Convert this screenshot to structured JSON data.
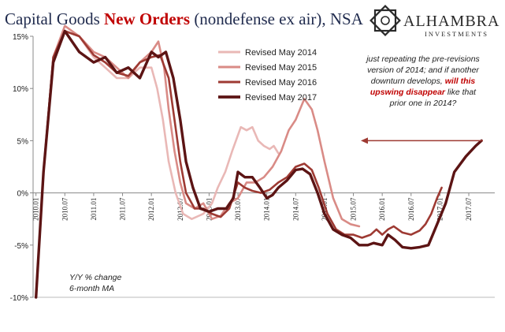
{
  "header": {
    "title_part1": "Capital Goods ",
    "title_accent": "New Orders",
    "title_part2": " (nondefense ex air), NSA"
  },
  "brand": {
    "name": "ALHAMBRA",
    "subtitle": "INVESTMENTS",
    "logo_icon": "geometric-star-icon"
  },
  "annotation": {
    "line1": "just repeating the pre-revisions",
    "line2": "version of 2014; and if another",
    "line3_pre": "downturn develops, ",
    "line3_red": "will this",
    "line4_red": "upswing disappear",
    "line4_post": " like that",
    "line5": "prior one in 2014?"
  },
  "note": {
    "line1": "Y/Y % change",
    "line2": "6-month MA"
  },
  "colors": {
    "s2014": "#e9b8b6",
    "s2015": "#d98b86",
    "s2016": "#9e3a33",
    "s2017": "#5c1414",
    "arrow": "#9e3a33",
    "accent": "#c00000"
  },
  "chart_data": {
    "type": "line",
    "ylim": [
      -10,
      15
    ],
    "yticks": [
      15,
      10,
      5,
      0,
      -5,
      -10
    ],
    "ytick_labels": [
      "15%",
      "10%",
      "5%",
      "0%",
      "-5%",
      "-10%"
    ],
    "x_range": [
      2009.95,
      2017.95
    ],
    "xticks": [
      2010.0,
      2010.5,
      2011.0,
      2011.5,
      2012.0,
      2012.5,
      2013.0,
      2013.5,
      2014.0,
      2014.5,
      2015.0,
      2015.5,
      2016.0,
      2016.5,
      2017.0,
      2017.5
    ],
    "xtick_labels": [
      "2010.01",
      "2010.07",
      "2011.01",
      "2011.07",
      "2012.01",
      "2012.07",
      "2013.01",
      "2013.07",
      "2014.01",
      "2014.07",
      "2015.01",
      "2015.07",
      "2016.01",
      "2016.07",
      "2017.01",
      "2017.07"
    ],
    "grid": false,
    "legend_position": "top-center",
    "series": [
      {
        "name": "Revised May 2014",
        "color": "#e9b8b6",
        "width": 2.6,
        "points": [
          [
            2010.0,
            -10
          ],
          [
            2010.13,
            2
          ],
          [
            2010.3,
            13
          ],
          [
            2010.5,
            15.5
          ],
          [
            2010.75,
            15
          ],
          [
            2011.0,
            13
          ],
          [
            2011.2,
            12
          ],
          [
            2011.4,
            11
          ],
          [
            2011.6,
            11
          ],
          [
            2011.8,
            12
          ],
          [
            2012.0,
            12
          ],
          [
            2012.1,
            10
          ],
          [
            2012.2,
            7
          ],
          [
            2012.3,
            3
          ],
          [
            2012.42,
            0
          ],
          [
            2012.55,
            -2
          ],
          [
            2012.7,
            -2.5
          ],
          [
            2012.9,
            -2
          ],
          [
            2013.05,
            -1
          ],
          [
            2013.15,
            0.5
          ],
          [
            2013.28,
            2
          ],
          [
            2013.4,
            4
          ],
          [
            2013.55,
            6.3
          ],
          [
            2013.65,
            6
          ],
          [
            2013.75,
            6.3
          ],
          [
            2013.85,
            5
          ],
          [
            2013.95,
            4.5
          ],
          [
            2014.05,
            4.2
          ],
          [
            2014.12,
            4.5
          ],
          [
            2014.2,
            3.8
          ]
        ]
      },
      {
        "name": "Revised May 2015",
        "color": "#d98b86",
        "width": 2.6,
        "points": [
          [
            2010.0,
            -10
          ],
          [
            2010.13,
            2
          ],
          [
            2010.3,
            13
          ],
          [
            2010.5,
            16
          ],
          [
            2010.75,
            15
          ],
          [
            2011.0,
            13.5
          ],
          [
            2011.2,
            13
          ],
          [
            2011.4,
            12
          ],
          [
            2011.6,
            11
          ],
          [
            2011.8,
            12.5
          ],
          [
            2012.0,
            13.5
          ],
          [
            2012.12,
            14.5
          ],
          [
            2012.22,
            12
          ],
          [
            2012.3,
            8
          ],
          [
            2012.4,
            4
          ],
          [
            2012.5,
            1
          ],
          [
            2012.6,
            -1
          ],
          [
            2012.75,
            -1.5
          ],
          [
            2012.9,
            -1
          ],
          [
            2013.05,
            -2.5
          ],
          [
            2013.2,
            -2.2
          ],
          [
            2013.35,
            -1
          ],
          [
            2013.5,
            -0.5
          ],
          [
            2013.65,
            1
          ],
          [
            2013.8,
            1
          ],
          [
            2013.95,
            1.5
          ],
          [
            2014.1,
            2.5
          ],
          [
            2014.25,
            4
          ],
          [
            2014.38,
            6
          ],
          [
            2014.5,
            7
          ],
          [
            2014.65,
            9
          ],
          [
            2014.78,
            8
          ],
          [
            2014.88,
            6
          ],
          [
            2015.0,
            3
          ],
          [
            2015.15,
            -0.5
          ],
          [
            2015.3,
            -2.5
          ],
          [
            2015.45,
            -3
          ],
          [
            2015.6,
            -3.2
          ]
        ]
      },
      {
        "name": "Revised May 2016",
        "color": "#9e3a33",
        "width": 2.6,
        "points": [
          [
            2010.0,
            -10
          ],
          [
            2010.13,
            2
          ],
          [
            2010.3,
            13
          ],
          [
            2010.5,
            15.5
          ],
          [
            2010.75,
            15
          ],
          [
            2011.0,
            13.2
          ],
          [
            2011.2,
            12.5
          ],
          [
            2011.4,
            11.5
          ],
          [
            2011.6,
            11.2
          ],
          [
            2011.8,
            12.5
          ],
          [
            2012.0,
            13
          ],
          [
            2012.15,
            13.2
          ],
          [
            2012.3,
            11
          ],
          [
            2012.4,
            7
          ],
          [
            2012.5,
            3
          ],
          [
            2012.6,
            0
          ],
          [
            2012.75,
            -1.5
          ],
          [
            2012.9,
            -1.5
          ],
          [
            2013.05,
            -2
          ],
          [
            2013.2,
            -2.3
          ],
          [
            2013.35,
            -1.5
          ],
          [
            2013.5,
            1
          ],
          [
            2013.62,
            0.5
          ],
          [
            2013.75,
            0.2
          ],
          [
            2013.9,
            0
          ],
          [
            2014.05,
            0.3
          ],
          [
            2014.2,
            1
          ],
          [
            2014.35,
            1.5
          ],
          [
            2014.5,
            2.5
          ],
          [
            2014.65,
            2.8
          ],
          [
            2014.78,
            2.2
          ],
          [
            2014.9,
            0.5
          ],
          [
            2015.05,
            -2
          ],
          [
            2015.2,
            -3.5
          ],
          [
            2015.35,
            -4
          ],
          [
            2015.5,
            -4
          ],
          [
            2015.65,
            -4.3
          ],
          [
            2015.8,
            -4
          ],
          [
            2015.9,
            -3.5
          ],
          [
            2016.0,
            -4
          ],
          [
            2016.1,
            -3.5
          ],
          [
            2016.2,
            -3.2
          ],
          [
            2016.35,
            -3.8
          ],
          [
            2016.5,
            -4
          ],
          [
            2016.65,
            -3.6
          ],
          [
            2016.75,
            -3
          ],
          [
            2016.85,
            -2
          ],
          [
            2016.95,
            -0.5
          ],
          [
            2017.03,
            0.5
          ]
        ]
      },
      {
        "name": "Revised May 2017",
        "color": "#5c1414",
        "width": 3.4,
        "points": [
          [
            2010.0,
            -10
          ],
          [
            2010.13,
            2
          ],
          [
            2010.3,
            12.5
          ],
          [
            2010.5,
            15.5
          ],
          [
            2010.75,
            13.5
          ],
          [
            2011.0,
            12.5
          ],
          [
            2011.2,
            13
          ],
          [
            2011.4,
            11.5
          ],
          [
            2011.6,
            12
          ],
          [
            2011.8,
            11
          ],
          [
            2012.0,
            13.5
          ],
          [
            2012.12,
            13
          ],
          [
            2012.25,
            13.5
          ],
          [
            2012.38,
            11
          ],
          [
            2012.5,
            7
          ],
          [
            2012.6,
            3
          ],
          [
            2012.72,
            0.5
          ],
          [
            2012.85,
            -1.5
          ],
          [
            2013.0,
            -1.8
          ],
          [
            2013.15,
            -1.5
          ],
          [
            2013.3,
            -1.5
          ],
          [
            2013.42,
            -0.5
          ],
          [
            2013.5,
            2
          ],
          [
            2013.62,
            1.5
          ],
          [
            2013.75,
            1.5
          ],
          [
            2013.88,
            0.5
          ],
          [
            2014.0,
            -0.5
          ],
          [
            2014.1,
            -0.2
          ],
          [
            2014.2,
            0.5
          ],
          [
            2014.35,
            1.2
          ],
          [
            2014.5,
            2.2
          ],
          [
            2014.62,
            2.3
          ],
          [
            2014.75,
            1.8
          ],
          [
            2014.88,
            0
          ],
          [
            2015.0,
            -2
          ],
          [
            2015.15,
            -3.5
          ],
          [
            2015.3,
            -4
          ],
          [
            2015.45,
            -4.3
          ],
          [
            2015.6,
            -5
          ],
          [
            2015.75,
            -5
          ],
          [
            2015.85,
            -4.8
          ],
          [
            2016.0,
            -5
          ],
          [
            2016.1,
            -4
          ],
          [
            2016.22,
            -4.5
          ],
          [
            2016.35,
            -5.2
          ],
          [
            2016.5,
            -5.3
          ],
          [
            2016.65,
            -5.2
          ],
          [
            2016.8,
            -5
          ],
          [
            2016.95,
            -3
          ],
          [
            2017.1,
            -1
          ],
          [
            2017.25,
            2
          ],
          [
            2017.45,
            3.5
          ],
          [
            2017.62,
            4.5
          ],
          [
            2017.72,
            5
          ]
        ]
      }
    ]
  }
}
